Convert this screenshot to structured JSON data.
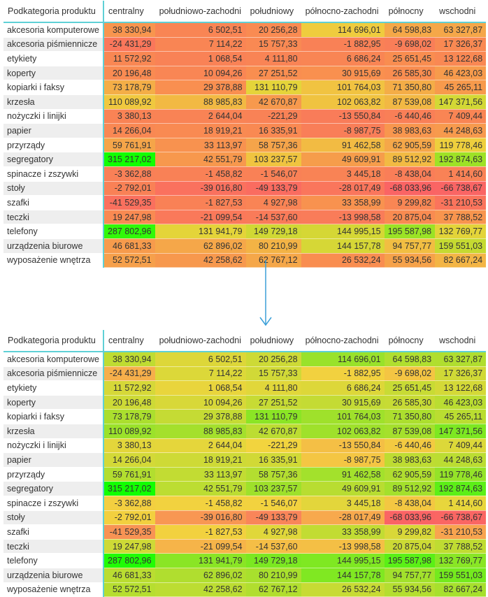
{
  "headers": [
    "Podkategoria produktu",
    "centralny",
    "południowo-zachodni",
    "południowy",
    "północno-zachodni",
    "północny",
    "wschodni"
  ],
  "rows": [
    [
      "akcesoria komputerowe",
      "38 330,94",
      "6 502,51",
      "20 256,28",
      "114 696,01",
      "64 598,83",
      "63 327,87"
    ],
    [
      "akcesoria piśmiennicze",
      "-24 431,29",
      "7 114,22",
      "15 757,33",
      "-1 882,95",
      "-9 698,02",
      "17 326,37"
    ],
    [
      "etykiety",
      "11 572,92",
      "1 068,54",
      "4 111,80",
      "6 686,24",
      "25 651,45",
      "13 122,68"
    ],
    [
      "koperty",
      "20 196,48",
      "10 094,26",
      "27 251,52",
      "30 915,69",
      "26 585,30",
      "46 423,03"
    ],
    [
      "kopiarki i faksy",
      "73 178,79",
      "29 378,88",
      "131 110,79",
      "101 764,03",
      "71 350,80",
      "45 265,11"
    ],
    [
      "krzesła",
      "110 089,92",
      "88 985,83",
      "42 670,87",
      "102 063,82",
      "87 539,08",
      "147 371,56"
    ],
    [
      "nożyczki i linijki",
      "3 380,13",
      "2 644,04",
      "-221,29",
      "-13 550,84",
      "-6 440,46",
      "7 409,44"
    ],
    [
      "papier",
      "14 266,04",
      "18 919,21",
      "16 335,91",
      "-8 987,75",
      "38 983,63",
      "44 248,63"
    ],
    [
      "przyrządy",
      "59 761,91",
      "33 113,97",
      "58 757,36",
      "91 462,58",
      "62 905,59",
      "119 778,46"
    ],
    [
      "segregatory",
      "315 217,02",
      "42 551,79",
      "103 237,57",
      "49 609,91",
      "89 512,92",
      "192 874,63"
    ],
    [
      "spinacze i zszywki",
      "-3 362,88",
      "-1 458,82",
      "-1 546,07",
      "3 445,18",
      "-8 438,04",
      "1 414,60"
    ],
    [
      "stoły",
      "-2 792,01",
      "-39 016,80",
      "-49 133,79",
      "-28 017,49",
      "-68 033,96",
      "-66 738,67"
    ],
    [
      "szafki",
      "-41 529,35",
      "-1 827,53",
      "4 927,98",
      "33 358,99",
      "9 299,82",
      "-31 210,53"
    ],
    [
      "teczki",
      "19 247,98",
      "-21 099,54",
      "-14 537,60",
      "-13 998,58",
      "20 875,04",
      "37 788,52"
    ],
    [
      "telefony",
      "287 802,96",
      "131 941,79",
      "149 729,18",
      "144 995,15",
      "195 587,98",
      "132 769,77"
    ],
    [
      "urządzenia biurowe",
      "46 681,33",
      "62 896,02",
      "80 210,99",
      "144 157,78",
      "94 757,77",
      "159 551,03"
    ],
    [
      "wyposażenie wnętrza",
      "52 572,51",
      "42 258,62",
      "62 767,12",
      "26 532,24",
      "55 934,56",
      "82 667,24"
    ]
  ],
  "colors": {
    "low": "#fa6464",
    "mid_top": "#eed23c",
    "zero_bottom": "#f2d43e",
    "high": "#11ff00",
    "orange": "#f98e50",
    "accent": "#5fd0d6",
    "arrow": "#3a9fd8"
  },
  "arrow_icon": "arrow-down-icon"
}
